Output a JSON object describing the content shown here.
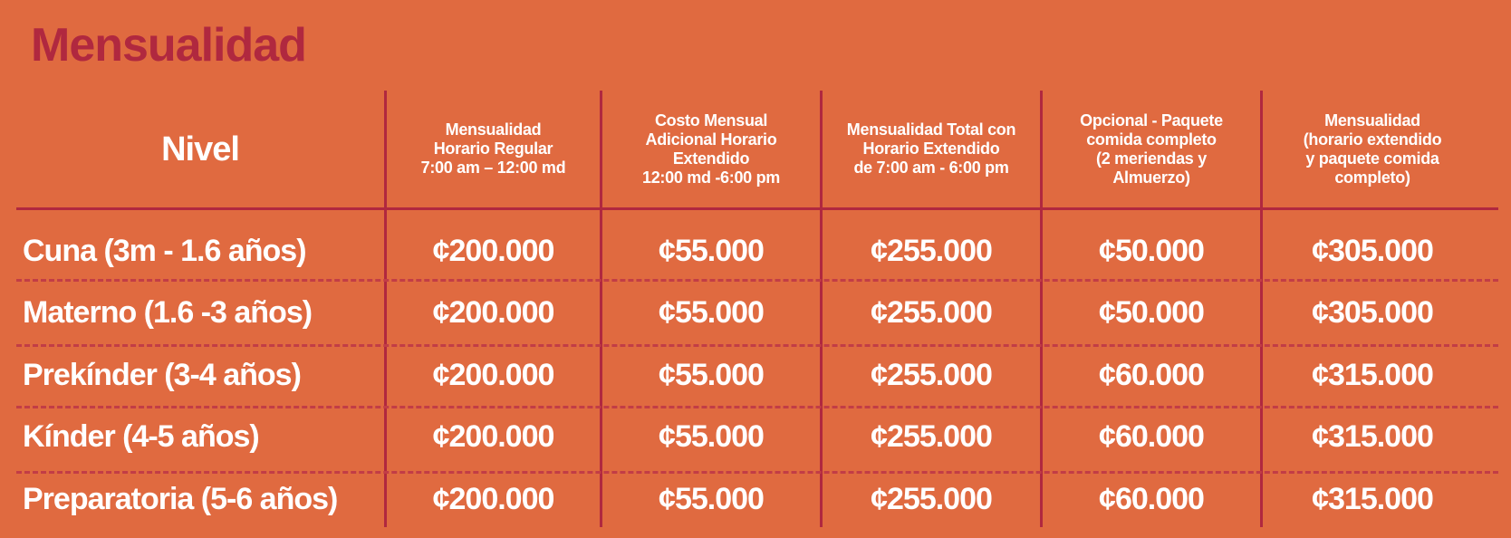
{
  "title": "Mensualidad",
  "table": {
    "headers": [
      "Nivel",
      "Mensualidad\nHorario Regular\n7:00 am – 12:00 md",
      "Costo Mensual\nAdicional Horario\nExtendido\n12:00 md -6:00 pm",
      "Mensualidad Total con\nHorario Extendido\nde 7:00 am - 6:00 pm",
      "Opcional - Paquete\ncomida completo\n(2 meriendas y\nAlmuerzo)",
      "Mensualidad\n(horario extendido\ny paquete comida\ncompleto)"
    ],
    "rows": [
      [
        "Cuna (3m - 1.6 años)",
        "¢200.000",
        "¢55.000",
        "¢255.000",
        "¢50.000",
        "¢305.000"
      ],
      [
        "Materno  (1.6 -3 años)",
        "¢200.000",
        "¢55.000",
        "¢255.000",
        "¢50.000",
        "¢305.000"
      ],
      [
        "Prekínder (3-4 años)",
        "¢200.000",
        "¢55.000",
        "¢255.000",
        "¢60.000",
        "¢315.000"
      ],
      [
        "Kínder (4-5 años)",
        "¢200.000",
        "¢55.000",
        "¢255.000",
        "¢60.000",
        "¢315.000"
      ],
      [
        "Preparatoria (5-6 años)",
        "¢200.000",
        "¢55.000",
        "¢255.000",
        "¢60.000",
        "¢315.000"
      ]
    ]
  },
  "colors": {
    "background": "#e06a40",
    "accent": "#b0283f",
    "text": "#ffffff"
  }
}
